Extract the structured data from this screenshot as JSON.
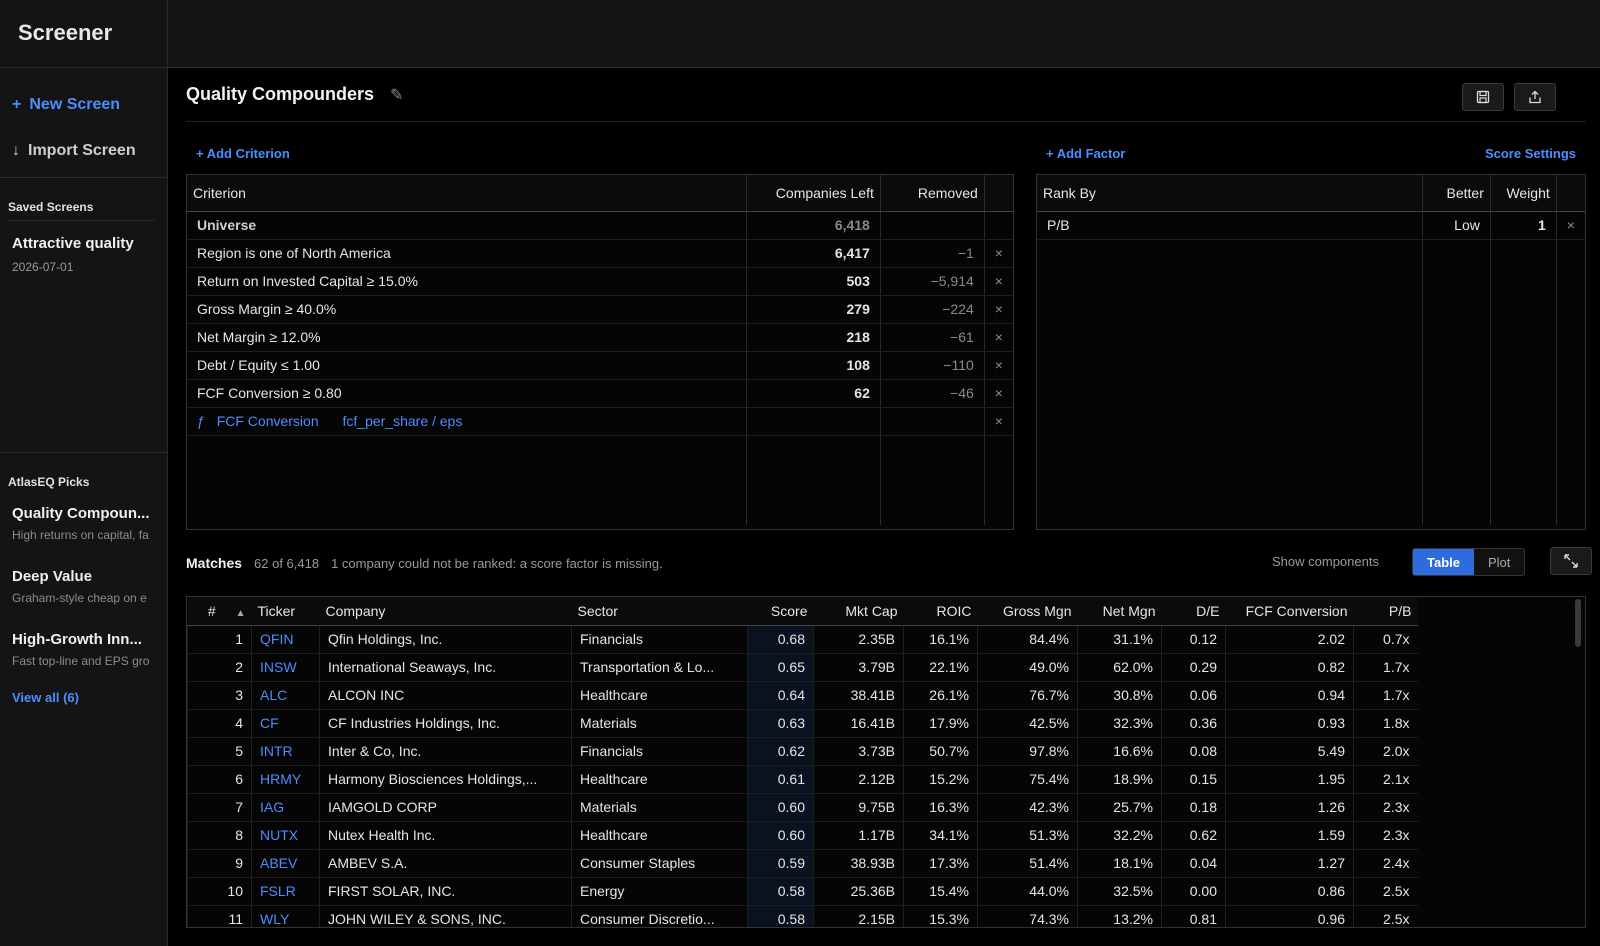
{
  "app": {
    "title": "Screener"
  },
  "sidebar": {
    "new_screen": "New Screen",
    "import_screen": "Import Screen",
    "saved_heading": "Saved Screens",
    "saved": [
      {
        "title": "Attractive quality",
        "date": "2026-07-01"
      }
    ],
    "picks_heading": "AtlasEQ Picks",
    "picks": [
      {
        "title": "Quality Compoun...",
        "desc": "High returns on capital, fa"
      },
      {
        "title": "Deep Value",
        "desc": "Graham-style cheap on e"
      },
      {
        "title": "High-Growth Inn...",
        "desc": "Fast top-line and EPS gro"
      }
    ],
    "view_all": "View all (6)"
  },
  "screen": {
    "title": "Quality Compounders"
  },
  "criteria": {
    "add_label": "+ Add Criterion",
    "headers": {
      "criterion": "Criterion",
      "companies_left": "Companies Left",
      "removed": "Removed"
    },
    "universe": {
      "label": "Universe",
      "count": "6,418"
    },
    "rows": [
      {
        "label": "Region is one of North America",
        "left": "6,417",
        "removed": "−1"
      },
      {
        "label": "Return on Invested Capital ≥ 15.0%",
        "left": "503",
        "removed": "−5,914"
      },
      {
        "label": "Gross Margin ≥ 40.0%",
        "left": "279",
        "removed": "−224"
      },
      {
        "label": "Net Margin ≥ 12.0%",
        "left": "218",
        "removed": "−61"
      },
      {
        "label": "Debt / Equity ≤ 1.00",
        "left": "108",
        "removed": "−110"
      },
      {
        "label": "FCF Conversion ≥ 0.80",
        "left": "62",
        "removed": "−46"
      }
    ],
    "formula": {
      "glyph": "ƒ",
      "name": "FCF Conversion",
      "expr": "fcf_per_share / eps"
    }
  },
  "ranking": {
    "add_label": "+ Add Factor",
    "settings_label": "Score Settings",
    "headers": {
      "rank_by": "Rank By",
      "better": "Better",
      "weight": "Weight"
    },
    "rows": [
      {
        "factor": "P/B",
        "better": "Low",
        "weight": "1"
      }
    ]
  },
  "matches": {
    "label": "Matches",
    "count": "62 of 6,418",
    "note": "1 company could not be ranked: a score factor is missing.",
    "show_components": "Show components",
    "view_table": "Table",
    "view_plot": "Plot",
    "headers": [
      "#",
      "Ticker",
      "Company",
      "Sector",
      "Score",
      "Mkt Cap",
      "ROIC",
      "Gross Mgn",
      "Net Mgn",
      "D/E",
      "FCF Conversion",
      "P/B"
    ],
    "rows": [
      [
        "1",
        "QFIN",
        "Qfin Holdings, Inc.",
        "Financials",
        "0.68",
        "2.35B",
        "16.1%",
        "84.4%",
        "31.1%",
        "0.12",
        "2.02",
        "0.7x"
      ],
      [
        "2",
        "INSW",
        "International Seaways, Inc.",
        "Transportation & Lo...",
        "0.65",
        "3.79B",
        "22.1%",
        "49.0%",
        "62.0%",
        "0.29",
        "0.82",
        "1.7x"
      ],
      [
        "3",
        "ALC",
        "ALCON INC",
        "Healthcare",
        "0.64",
        "38.41B",
        "26.1%",
        "76.7%",
        "30.8%",
        "0.06",
        "0.94",
        "1.7x"
      ],
      [
        "4",
        "CF",
        "CF Industries Holdings, Inc.",
        "Materials",
        "0.63",
        "16.41B",
        "17.9%",
        "42.5%",
        "32.3%",
        "0.36",
        "0.93",
        "1.8x"
      ],
      [
        "5",
        "INTR",
        "Inter & Co, Inc.",
        "Financials",
        "0.62",
        "3.73B",
        "50.7%",
        "97.8%",
        "16.6%",
        "0.08",
        "5.49",
        "2.0x"
      ],
      [
        "6",
        "HRMY",
        "Harmony Biosciences Holdings,...",
        "Healthcare",
        "0.61",
        "2.12B",
        "15.2%",
        "75.4%",
        "18.9%",
        "0.15",
        "1.95",
        "2.1x"
      ],
      [
        "7",
        "IAG",
        "IAMGOLD CORP",
        "Materials",
        "0.60",
        "9.75B",
        "16.3%",
        "42.3%",
        "25.7%",
        "0.18",
        "1.26",
        "2.3x"
      ],
      [
        "8",
        "NUTX",
        "Nutex Health Inc.",
        "Healthcare",
        "0.60",
        "1.17B",
        "34.1%",
        "51.3%",
        "32.2%",
        "0.62",
        "1.59",
        "2.3x"
      ],
      [
        "9",
        "ABEV",
        "AMBEV S.A.",
        "Consumer Staples",
        "0.59",
        "38.93B",
        "17.3%",
        "51.4%",
        "18.1%",
        "0.04",
        "1.27",
        "2.4x"
      ],
      [
        "10",
        "FSLR",
        "FIRST SOLAR, INC.",
        "Energy",
        "0.58",
        "25.36B",
        "15.4%",
        "44.0%",
        "32.5%",
        "0.00",
        "0.86",
        "2.5x"
      ],
      [
        "11",
        "WLY",
        "JOHN WILEY & SONS, INC.",
        "Consumer Discretio...",
        "0.58",
        "2.15B",
        "15.3%",
        "74.3%",
        "13.2%",
        "0.81",
        "0.96",
        "2.5x"
      ]
    ]
  },
  "icons": {
    "save": "save-icon",
    "share": "share-icon",
    "expand": "expand-icon",
    "edit": "pencil-icon",
    "remove": "close-icon"
  }
}
